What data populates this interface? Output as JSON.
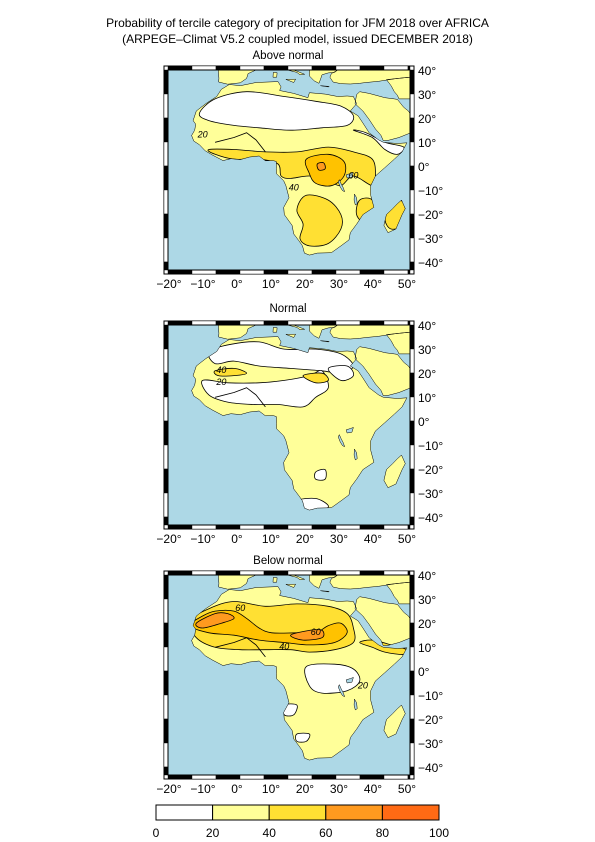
{
  "title_line1": "Probability of tercile category of precipitation for JFM 2018 over AFRICA",
  "title_line2": "(ARPEGE–Climat V5.2 coupled model, issued DECEMBER 2018)",
  "panels": [
    {
      "title": "Above normal",
      "labels": [
        "20",
        "40",
        "60"
      ]
    },
    {
      "title": "Normal",
      "labels": [
        "40",
        "20"
      ]
    },
    {
      "title": "Below normal",
      "labels": [
        "60",
        "60",
        "40",
        "20"
      ]
    }
  ],
  "lon_ticks": [
    "−20°",
    "−10°",
    "0°",
    "10°",
    "20°",
    "30°",
    "40°",
    "50°"
  ],
  "lat_ticks": [
    "40°",
    "30°",
    "20°",
    "10°",
    "0°",
    "−10°",
    "−20°",
    "−30°",
    "−40°"
  ],
  "colorbar": {
    "ticks": [
      "0",
      "20",
      "40",
      "60",
      "80",
      "100"
    ],
    "colors": [
      "#ffffff",
      "#ffff99",
      "#ffe033",
      "#ffc200",
      "#ff9a1f",
      "#ff6a14"
    ]
  },
  "colors": {
    "ocean": "#add8e6",
    "frame": "#000000"
  }
}
